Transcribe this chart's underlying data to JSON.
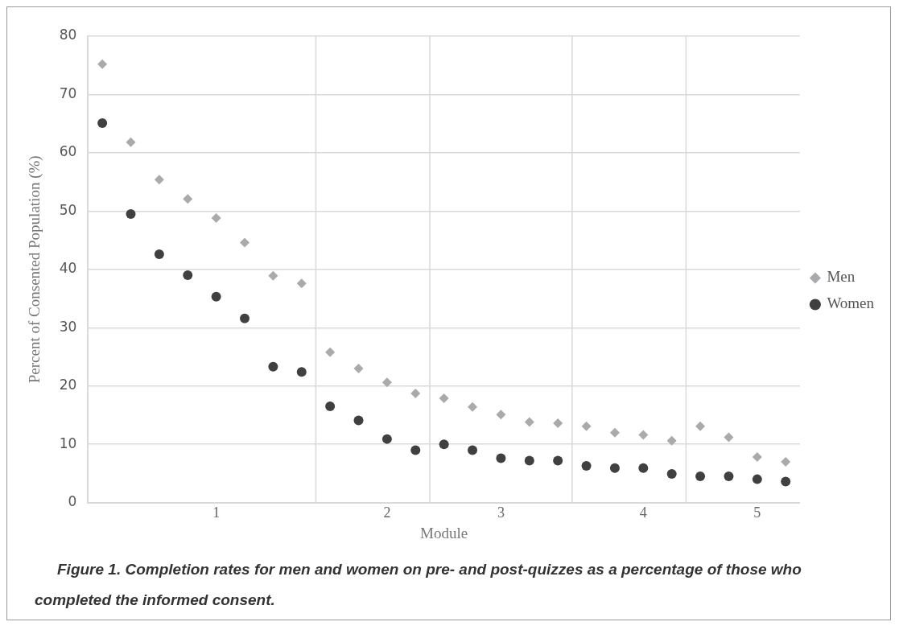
{
  "chart_data": {
    "type": "scatter",
    "xlabel": "Module",
    "ylabel": "Percent of Consented Population (%)",
    "categories": [
      null,
      null,
      null,
      null,
      "1",
      null,
      null,
      null,
      null,
      null,
      "2",
      null,
      null,
      null,
      "3",
      null,
      null,
      null,
      null,
      "4",
      null,
      null,
      null,
      "5",
      null
    ],
    "ylim": [
      0,
      80
    ],
    "yticks": [
      0,
      10,
      20,
      30,
      40,
      50,
      60,
      70,
      80
    ],
    "series": [
      {
        "name": "Men",
        "color": "#aaaaad",
        "marker": "diamond",
        "values": [
          75.2,
          61.8,
          55.4,
          52.1,
          48.8,
          44.6,
          38.9,
          37.6,
          25.8,
          23.0,
          20.6,
          18.7,
          17.9,
          16.4,
          15.1,
          13.8,
          13.6,
          13.1,
          12.0,
          11.6,
          10.6,
          13.1,
          11.2,
          7.8,
          7.0
        ]
      },
      {
        "name": "Women",
        "color": "#404040",
        "marker": "circle",
        "values": [
          65.1,
          49.5,
          42.6,
          39.0,
          35.3,
          31.6,
          23.3,
          22.4,
          16.5,
          14.1,
          10.9,
          9.0,
          10.0,
          9.0,
          7.6,
          7.2,
          7.2,
          6.3,
          5.9,
          5.9,
          4.9,
          4.5,
          4.5,
          4.0,
          3.6
        ]
      }
    ],
    "grid": "y",
    "legend": "right",
    "annotations": [
      "Figure 1. Completion rates for men and women on pre- and post-quizzes as a percentage of those who completed the informed consent."
    ]
  }
}
